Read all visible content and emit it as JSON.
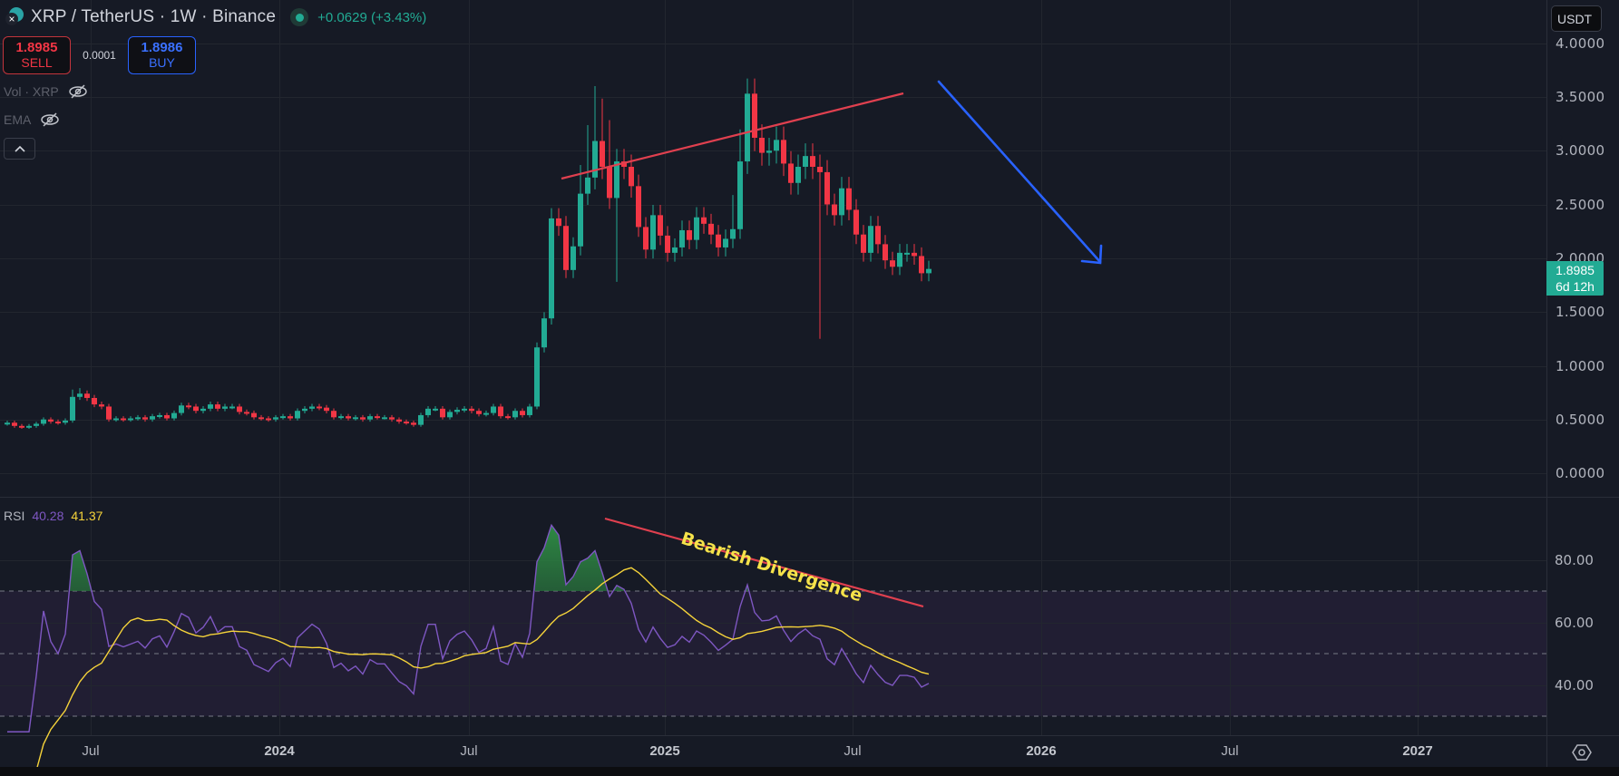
{
  "header": {
    "symbol_title": "XRP / TetherUS · 1W · Binance",
    "change": "+0.0629 (+3.43%)",
    "market_status": "open"
  },
  "trade": {
    "sell_price": "1.8985",
    "sell_label": "SELL",
    "spread": "0.0001",
    "buy_price": "1.8986",
    "buy_label": "BUY"
  },
  "indicators": [
    {
      "label": "Vol · XRP",
      "visible": false
    },
    {
      "label": "EMA",
      "visible": false
    }
  ],
  "collapse_icon": "chevron-up",
  "currency_select": "USDT",
  "price_axis": {
    "labels": [
      "4.0000",
      "3.5000",
      "3.0000",
      "2.5000",
      "2.0000",
      "1.5000",
      "1.0000",
      "0.5000",
      "0.0000"
    ],
    "current_price": "1.8985",
    "countdown": "6d 12h"
  },
  "rsi": {
    "label": "RSI",
    "value": "40.28",
    "ma_value": "41.37",
    "axis_labels": [
      "80.00",
      "60.00",
      "40.00"
    ],
    "bands": [
      70,
      50,
      30
    ]
  },
  "annotation": {
    "text": "Bearish Divergence"
  },
  "time_axis": {
    "labels": [
      {
        "text": "Jul",
        "year": false
      },
      {
        "text": "2024",
        "year": true
      },
      {
        "text": "Jul",
        "year": false
      },
      {
        "text": "2025",
        "year": true
      },
      {
        "text": "Jul",
        "year": false
      },
      {
        "text": "2026",
        "year": true
      },
      {
        "text": "Jul",
        "year": false
      },
      {
        "text": "2027",
        "year": true
      }
    ]
  },
  "colors": {
    "up": "#22ab94",
    "down": "#f23645",
    "rsi_line": "#7e57c2",
    "rsi_ma": "#f5d33a",
    "trendline": "#e0404f",
    "arrow": "#2962ff",
    "background": "#161a25"
  },
  "chart_data": {
    "type": "candlestick",
    "title": "XRP / TetherUS · 1W · Binance",
    "ylabel": "USDT",
    "ylim": [
      0,
      4.1
    ],
    "x_ticks": [
      "Jul 2023",
      "2024",
      "Jul 2024",
      "2025",
      "Jul 2025",
      "2026",
      "Jul 2026",
      "2027"
    ],
    "approx_weekly_close": [
      0.47,
      0.44,
      0.43,
      0.44,
      0.46,
      0.5,
      0.48,
      0.47,
      0.49,
      0.71,
      0.74,
      0.7,
      0.64,
      0.62,
      0.5,
      0.51,
      0.5,
      0.51,
      0.52,
      0.5,
      0.53,
      0.54,
      0.51,
      0.56,
      0.63,
      0.62,
      0.58,
      0.6,
      0.64,
      0.6,
      0.62,
      0.62,
      0.57,
      0.56,
      0.52,
      0.51,
      0.5,
      0.52,
      0.53,
      0.51,
      0.58,
      0.6,
      0.62,
      0.61,
      0.58,
      0.52,
      0.53,
      0.51,
      0.52,
      0.5,
      0.53,
      0.52,
      0.52,
      0.5,
      0.48,
      0.47,
      0.45,
      0.54,
      0.6,
      0.6,
      0.52,
      0.57,
      0.59,
      0.6,
      0.58,
      0.55,
      0.56,
      0.62,
      0.53,
      0.52,
      0.58,
      0.54,
      0.62,
      1.17,
      1.44,
      2.37,
      2.3,
      1.89,
      2.11,
      2.6,
      2.75,
      3.09,
      2.85,
      2.56,
      2.9,
      2.85,
      2.67,
      2.29,
      2.08,
      2.4,
      2.21,
      2.05,
      2.1,
      2.26,
      2.17,
      2.38,
      2.32,
      2.22,
      2.1,
      2.18,
      2.27,
      2.9,
      3.53,
      3.12,
      2.98,
      3.0,
      3.1,
      2.88,
      2.7,
      2.85,
      2.95,
      2.85,
      2.8,
      2.5,
      2.4,
      2.65,
      2.45,
      2.22,
      2.05,
      2.3,
      2.13,
      1.98,
      1.92,
      2.05,
      2.05,
      2.02,
      1.86,
      1.9
    ],
    "annotations": {
      "price_trendline": {
        "from": [
          0.05,
          2.75
        ],
        "to": [
          0.56,
          3.55
        ],
        "color": "#e0404f"
      },
      "bearish_arrow": {
        "from": [
          3.6,
          "Aug 2025"
        ],
        "to": [
          1.98,
          "Feb 2026"
        ],
        "color": "#2962ff"
      },
      "rsi_trendline_label": "Bearish Divergence"
    },
    "rsi_series": {
      "name": "RSI",
      "last": 40.28,
      "ma_last": 41.37,
      "peaks": [
        {
          "date": "Dec 2024",
          "value": 92
        },
        {
          "date": "Jul 2025",
          "value": 70
        }
      ]
    }
  }
}
